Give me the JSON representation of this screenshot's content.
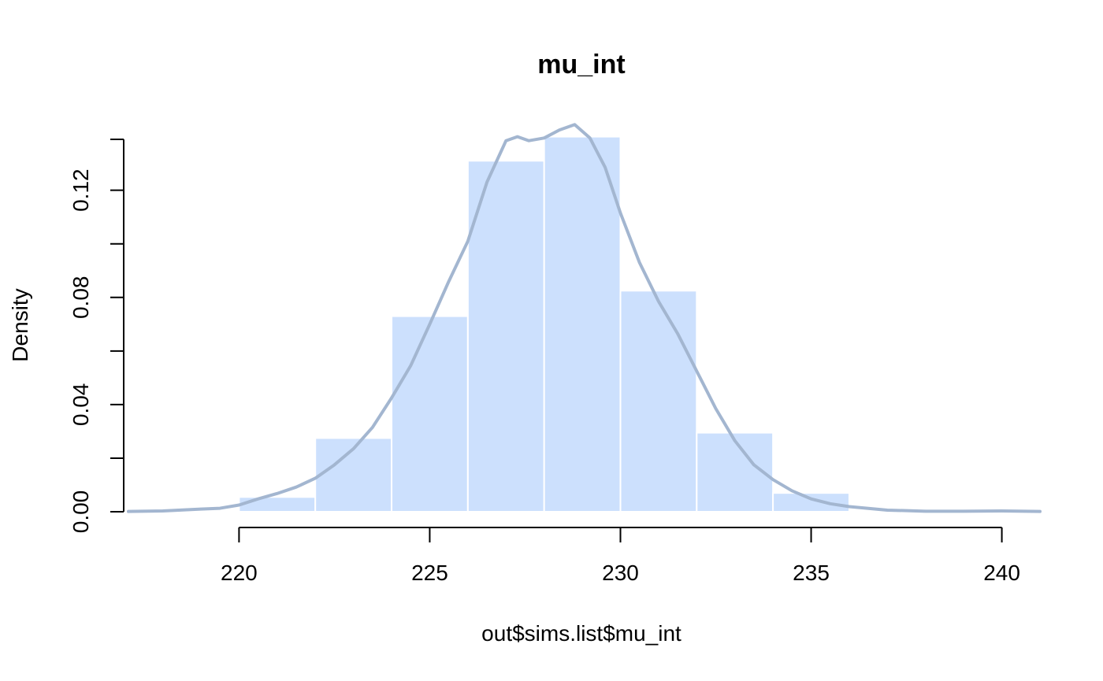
{
  "chart_data": {
    "type": "bar",
    "title": "mu_int",
    "xlabel": "out$sims.list$mu_int",
    "ylabel": "Density",
    "xlim": [
      217.1,
      241.0
    ],
    "ylim": [
      0,
      0.139
    ],
    "x_ticks": [
      220,
      225,
      230,
      235,
      240
    ],
    "x_tick_labels": [
      "220",
      "225",
      "230",
      "235",
      "240"
    ],
    "y_ticks": [
      0,
      0.02,
      0.04,
      0.06,
      0.08,
      0.1,
      0.12,
      0.139
    ],
    "y_tick_labels": [
      "0.00",
      "",
      "0.04",
      "",
      "0.08",
      "",
      "0.12",
      ""
    ],
    "grid": false,
    "legend": "none",
    "bins": [
      {
        "x0": 220,
        "x1": 222,
        "density": 0.0055
      },
      {
        "x0": 222,
        "x1": 224,
        "density": 0.0275
      },
      {
        "x0": 224,
        "x1": 226,
        "density": 0.073
      },
      {
        "x0": 226,
        "x1": 228,
        "density": 0.131
      },
      {
        "x0": 228,
        "x1": 230,
        "density": 0.14
      },
      {
        "x0": 230,
        "x1": 232,
        "density": 0.0825
      },
      {
        "x0": 232,
        "x1": 234,
        "density": 0.0295
      },
      {
        "x0": 234,
        "x1": 236,
        "density": 0.007
      }
    ],
    "density_curve": {
      "x": [
        217.1,
        218,
        219,
        219.5,
        220,
        220.5,
        221,
        221.5,
        222,
        222.5,
        223,
        223.5,
        224,
        224.5,
        225,
        225.5,
        226,
        226.5,
        227,
        227.3,
        227.6,
        228,
        228.4,
        228.8,
        229.2,
        229.6,
        230,
        230.5,
        231,
        231.5,
        232,
        232.5,
        233,
        233.5,
        234,
        234.5,
        235,
        235.5,
        236,
        237,
        238,
        239,
        240,
        241
      ],
      "y": [
        0.0001,
        0.0003,
        0.001,
        0.0013,
        0.0025,
        0.0048,
        0.0068,
        0.0092,
        0.0125,
        0.0175,
        0.0235,
        0.0315,
        0.0425,
        0.0545,
        0.07,
        0.086,
        0.101,
        0.123,
        0.1385,
        0.14,
        0.1385,
        0.1395,
        0.1425,
        0.1445,
        0.1395,
        0.1285,
        0.1115,
        0.093,
        0.0785,
        0.0665,
        0.0525,
        0.0385,
        0.0265,
        0.0175,
        0.012,
        0.0078,
        0.0048,
        0.003,
        0.0019,
        0.0006,
        0.0002,
        0.0002,
        0.0003,
        0.0001
      ]
    },
    "colors": {
      "bar_fill": "#cce0fd",
      "bar_border": "#ffffff",
      "density_line": "#a3b6d0"
    }
  }
}
